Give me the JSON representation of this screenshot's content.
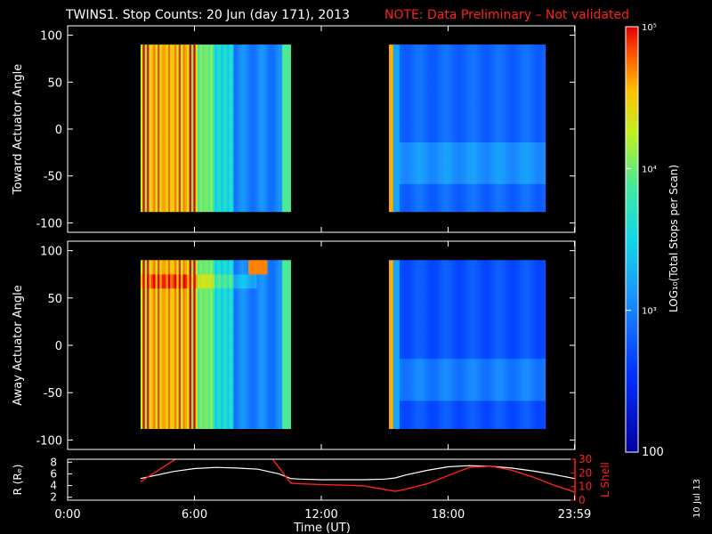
{
  "title": "TWINS1. Stop Counts: 20 Jun (day 171), 2013",
  "note": "NOTE: Data Preliminary – Not validated",
  "date_stamp": "10 Jul 13",
  "colors": {
    "note": "#ff2020",
    "lshell": "#ff2020",
    "radius": "#ffffff",
    "background": "#000000"
  },
  "chart_data": [
    {
      "type": "heatmap",
      "name": "toward",
      "ylabel": "Toward Actuator Angle",
      "ylim": [
        -110,
        110
      ],
      "yticks": [
        100,
        50,
        0,
        -50,
        -100
      ],
      "ytick_labels": [
        "100",
        "50",
        "0",
        "-50",
        "-100"
      ],
      "data_blocks": [
        {
          "start_hr": 3.45,
          "end_hr": 10.55,
          "angle_range": [
            -88,
            90
          ]
        },
        {
          "start_hr": 15.2,
          "end_hr": 22.6,
          "angle_range": [
            -88,
            90
          ]
        }
      ]
    },
    {
      "type": "heatmap",
      "name": "away",
      "ylabel": "Away Actuator Angle",
      "ylim": [
        -110,
        110
      ],
      "yticks": [
        100,
        50,
        0,
        -50,
        -100
      ],
      "ytick_labels": [
        "100",
        "50",
        "0",
        "-50",
        "-100"
      ],
      "data_blocks": [
        {
          "start_hr": 3.45,
          "end_hr": 10.55,
          "angle_range": [
            -88,
            90
          ]
        },
        {
          "start_hr": 15.2,
          "end_hr": 22.6,
          "angle_range": [
            -88,
            90
          ]
        }
      ]
    },
    {
      "type": "line",
      "name": "orbit",
      "ylabel_left": "R (Rₑ)",
      "ylabel_right": "L Shell",
      "left_ylim": [
        1.5,
        8.5
      ],
      "left_ticks": [
        8,
        6,
        4,
        2
      ],
      "left_tick_labels": [
        "8",
        "6",
        "4",
        "2"
      ],
      "right_ylim": [
        0,
        30
      ],
      "right_ticks": [
        30,
        20,
        10,
        0
      ],
      "right_tick_labels": [
        "30",
        "20",
        "10",
        "0"
      ],
      "series": [
        {
          "name": "R",
          "x": [
            3.45,
            5,
            6,
            7,
            8,
            9,
            10,
            10.55,
            11,
            12,
            13,
            14,
            15,
            15.5,
            16,
            17,
            18,
            19,
            20,
            21,
            22,
            23,
            23.98
          ],
          "y": [
            5.2,
            6.4,
            6.9,
            7.1,
            7.0,
            6.8,
            6.0,
            5.2,
            5.1,
            5.0,
            5.0,
            5.0,
            5.1,
            5.3,
            5.8,
            6.6,
            7.2,
            7.4,
            7.3,
            7.0,
            6.5,
            5.9,
            5.2
          ]
        },
        {
          "name": "L Shell",
          "x": [
            3.45,
            5.3,
            9.6,
            10.55,
            11,
            12,
            13,
            14,
            15.5,
            16,
            17,
            18,
            19,
            20,
            21,
            22,
            23,
            23.98
          ],
          "y": [
            13.5,
            32,
            32,
            12.5,
            12,
            11.5,
            11,
            10.5,
            6.5,
            8,
            12,
            18,
            24,
            25,
            22,
            17,
            11,
            6
          ]
        }
      ]
    }
  ],
  "x_axis": {
    "xlim": [
      0,
      24
    ],
    "ticks": [
      0,
      6,
      12,
      18,
      23.98
    ],
    "tick_labels": [
      "0:00",
      "6:00",
      "12:00",
      "18:00",
      "23:59"
    ],
    "xlabel": "Time (UT)"
  },
  "colorbar": {
    "label": "LOG₁₀(Total Stops per Scan)",
    "range_log": [
      2,
      5
    ],
    "ticks": [
      {
        "value_log": 5,
        "label": "10⁵"
      },
      {
        "value_log": 4,
        "label": "10⁴"
      },
      {
        "value_log": 3,
        "label": "10³"
      },
      {
        "value_log": 2,
        "label": "100"
      }
    ]
  }
}
